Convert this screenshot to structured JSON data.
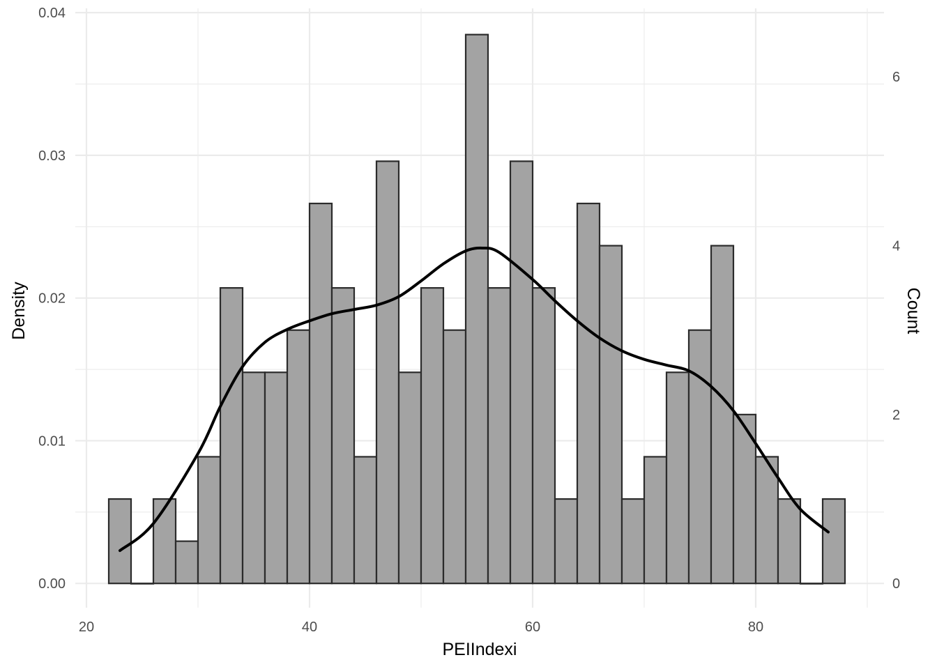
{
  "chart_data": {
    "type": "bar",
    "xlabel": "PEIIndexi",
    "ylabel": "Density",
    "y2label": "Count",
    "xlim": [
      19,
      91.5
    ],
    "ylim": [
      -0.0017,
      0.0403
    ],
    "xticks": [
      20,
      40,
      60,
      80
    ],
    "yticks": [
      0.0,
      0.01,
      0.02,
      0.03,
      0.04
    ],
    "ytick_labels": [
      "0.00",
      "0.01",
      "0.02",
      "0.03",
      "0.04"
    ],
    "y2ticks": [
      0,
      2,
      4,
      6
    ],
    "count_per_density": 169,
    "bin_width": 2,
    "bins": [
      {
        "x0": 22,
        "x1": 24,
        "count": 1
      },
      {
        "x0": 24,
        "x1": 26,
        "count": 0
      },
      {
        "x0": 26,
        "x1": 28,
        "count": 1
      },
      {
        "x0": 28,
        "x1": 30,
        "count": 0.5
      },
      {
        "x0": 30,
        "x1": 32,
        "count": 1.5
      },
      {
        "x0": 32,
        "x1": 34,
        "count": 3.5
      },
      {
        "x0": 34,
        "x1": 36,
        "count": 2.5
      },
      {
        "x0": 36,
        "x1": 38,
        "count": 2.5
      },
      {
        "x0": 38,
        "x1": 40,
        "count": 3
      },
      {
        "x0": 40,
        "x1": 42,
        "count": 4.5
      },
      {
        "x0": 42,
        "x1": 44,
        "count": 3.5
      },
      {
        "x0": 44,
        "x1": 46,
        "count": 1.5
      },
      {
        "x0": 46,
        "x1": 48,
        "count": 5
      },
      {
        "x0": 48,
        "x1": 50,
        "count": 2.5
      },
      {
        "x0": 50,
        "x1": 52,
        "count": 3.5
      },
      {
        "x0": 52,
        "x1": 54,
        "count": 3
      },
      {
        "x0": 54,
        "x1": 56,
        "count": 6.5
      },
      {
        "x0": 56,
        "x1": 58,
        "count": 3.5
      },
      {
        "x0": 58,
        "x1": 60,
        "count": 5
      },
      {
        "x0": 60,
        "x1": 62,
        "count": 3.5
      },
      {
        "x0": 62,
        "x1": 64,
        "count": 1
      },
      {
        "x0": 64,
        "x1": 66,
        "count": 4.5
      },
      {
        "x0": 66,
        "x1": 68,
        "count": 4
      },
      {
        "x0": 68,
        "x1": 70,
        "count": 1
      },
      {
        "x0": 70,
        "x1": 72,
        "count": 1.5
      },
      {
        "x0": 72,
        "x1": 74,
        "count": 2.5
      },
      {
        "x0": 74,
        "x1": 76,
        "count": 3
      },
      {
        "x0": 76,
        "x1": 78,
        "count": 4
      },
      {
        "x0": 78,
        "x1": 80,
        "count": 2
      },
      {
        "x0": 80,
        "x1": 82,
        "count": 1.5
      },
      {
        "x0": 82,
        "x1": 84,
        "count": 1
      },
      {
        "x0": 84,
        "x1": 86,
        "count": 0
      },
      {
        "x0": 86,
        "x1": 88,
        "count": 1
      }
    ],
    "density_curve": {
      "x": [
        23,
        26,
        30,
        32,
        34,
        36,
        38,
        40,
        42,
        44,
        46,
        48,
        50,
        52,
        54,
        55.5,
        57,
        60,
        62,
        64,
        66,
        68,
        70,
        72,
        74,
        76,
        78,
        80,
        82,
        84,
        86.5
      ],
      "y": [
        0.0023,
        0.0042,
        0.0091,
        0.0124,
        0.0152,
        0.0169,
        0.0178,
        0.0184,
        0.0189,
        0.0192,
        0.0195,
        0.0201,
        0.0212,
        0.0224,
        0.0233,
        0.0235,
        0.0232,
        0.0213,
        0.0198,
        0.0184,
        0.0172,
        0.0163,
        0.0157,
        0.0153,
        0.0149,
        0.0138,
        0.0121,
        0.0098,
        0.0074,
        0.0052,
        0.0036
      ]
    },
    "bar_fill": "#a3a3a3",
    "bar_stroke": "#2b2b2b",
    "curve_color": "#000000",
    "grid_color": "#ebebeb",
    "grid": true,
    "legend": "none"
  }
}
